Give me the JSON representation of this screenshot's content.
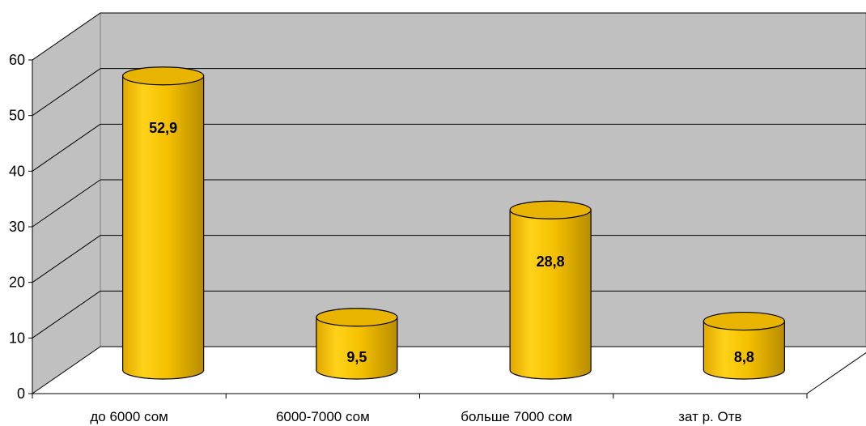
{
  "chart_data": {
    "type": "bar",
    "style": "3d-cylinder",
    "categories": [
      "до 6000 сом",
      "6000-7000 сом",
      "больше 7000 сом",
      "зат р. Отв"
    ],
    "series": [
      {
        "values": [
          52.9,
          9.5,
          28.8,
          8.8
        ],
        "labels": [
          "52,9",
          "9,5",
          "28,8",
          "8,8"
        ]
      }
    ],
    "yticks": [
      "0",
      "10",
      "20",
      "30",
      "40",
      "50",
      "60"
    ],
    "ylim": [
      0,
      60
    ],
    "grid": true,
    "legend": "none",
    "colors": {
      "bar": "#F6C400",
      "bar_shadow": "#B58C00",
      "wall": "#C0C0C0",
      "floor": "#FFFFFF",
      "grid": "#000000"
    }
  }
}
